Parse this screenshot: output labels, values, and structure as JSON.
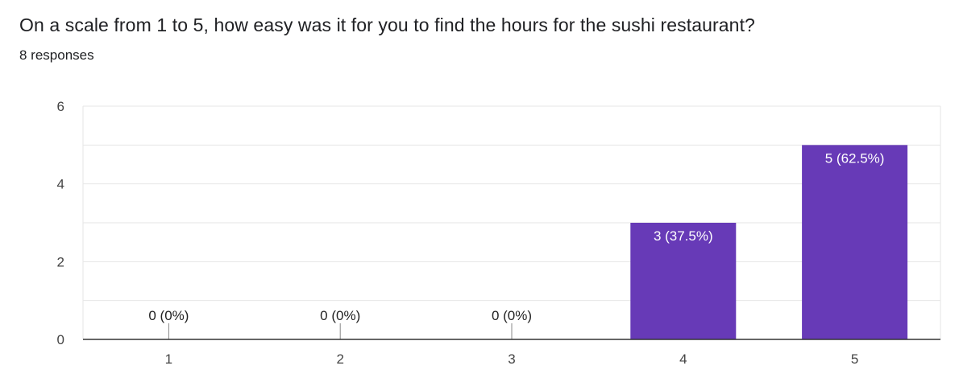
{
  "question": {
    "title": "On a scale from 1 to 5, how easy was it for you to find the hours for the sushi restaurant?",
    "response_count": "8 responses"
  },
  "colors": {
    "bar": "#673ab7",
    "grid": "#e6e6e6",
    "axis": "#333333"
  },
  "chart_data": {
    "type": "bar",
    "title": "",
    "xlabel": "",
    "ylabel": "",
    "categories": [
      "1",
      "2",
      "3",
      "4",
      "5"
    ],
    "values": [
      0,
      0,
      0,
      3,
      5
    ],
    "data_labels": [
      "0 (0%)",
      "0 (0%)",
      "0 (0%)",
      "3 (37.5%)",
      "5 (62.5%)"
    ],
    "ylim": [
      0,
      6
    ],
    "yticks": [
      0,
      2,
      4,
      6
    ],
    "grid": true,
    "legend": "none"
  }
}
